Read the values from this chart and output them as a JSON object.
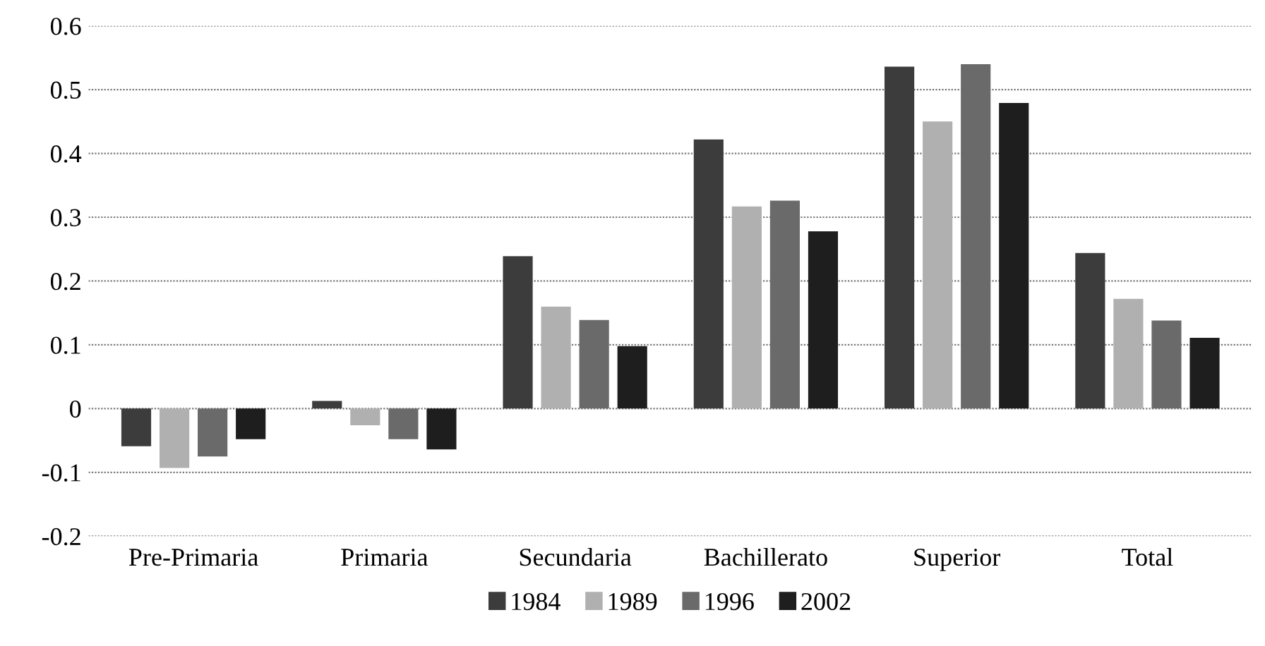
{
  "chart_data": {
    "type": "bar",
    "categories": [
      "Pre-Primaria",
      "Primaria",
      "Secundaria",
      "Bachillerato",
      "Superior",
      "Total"
    ],
    "series": [
      {
        "name": "1984",
        "color": "#3c3c3c",
        "values": [
          -0.059,
          0.012,
          0.239,
          0.422,
          0.536,
          0.244
        ]
      },
      {
        "name": "1989",
        "color": "#b0b0b0",
        "values": [
          -0.093,
          -0.026,
          0.16,
          0.317,
          0.45,
          0.172
        ]
      },
      {
        "name": "1996",
        "color": "#6a6a6a",
        "values": [
          -0.075,
          -0.048,
          0.139,
          0.326,
          0.54,
          0.138
        ]
      },
      {
        "name": "2002",
        "color": "#1e1e1e",
        "values": [
          -0.048,
          -0.064,
          0.098,
          0.278,
          0.479,
          0.111
        ]
      }
    ],
    "ylim": [
      -0.2,
      0.6
    ],
    "yticks": [
      {
        "value": -0.2,
        "label": "-0.2"
      },
      {
        "value": -0.1,
        "label": "-0.1"
      },
      0,
      0.1,
      0.2,
      0.3,
      0.4,
      0.5,
      0.6
    ],
    "grid": "y",
    "legend": "bottom"
  }
}
